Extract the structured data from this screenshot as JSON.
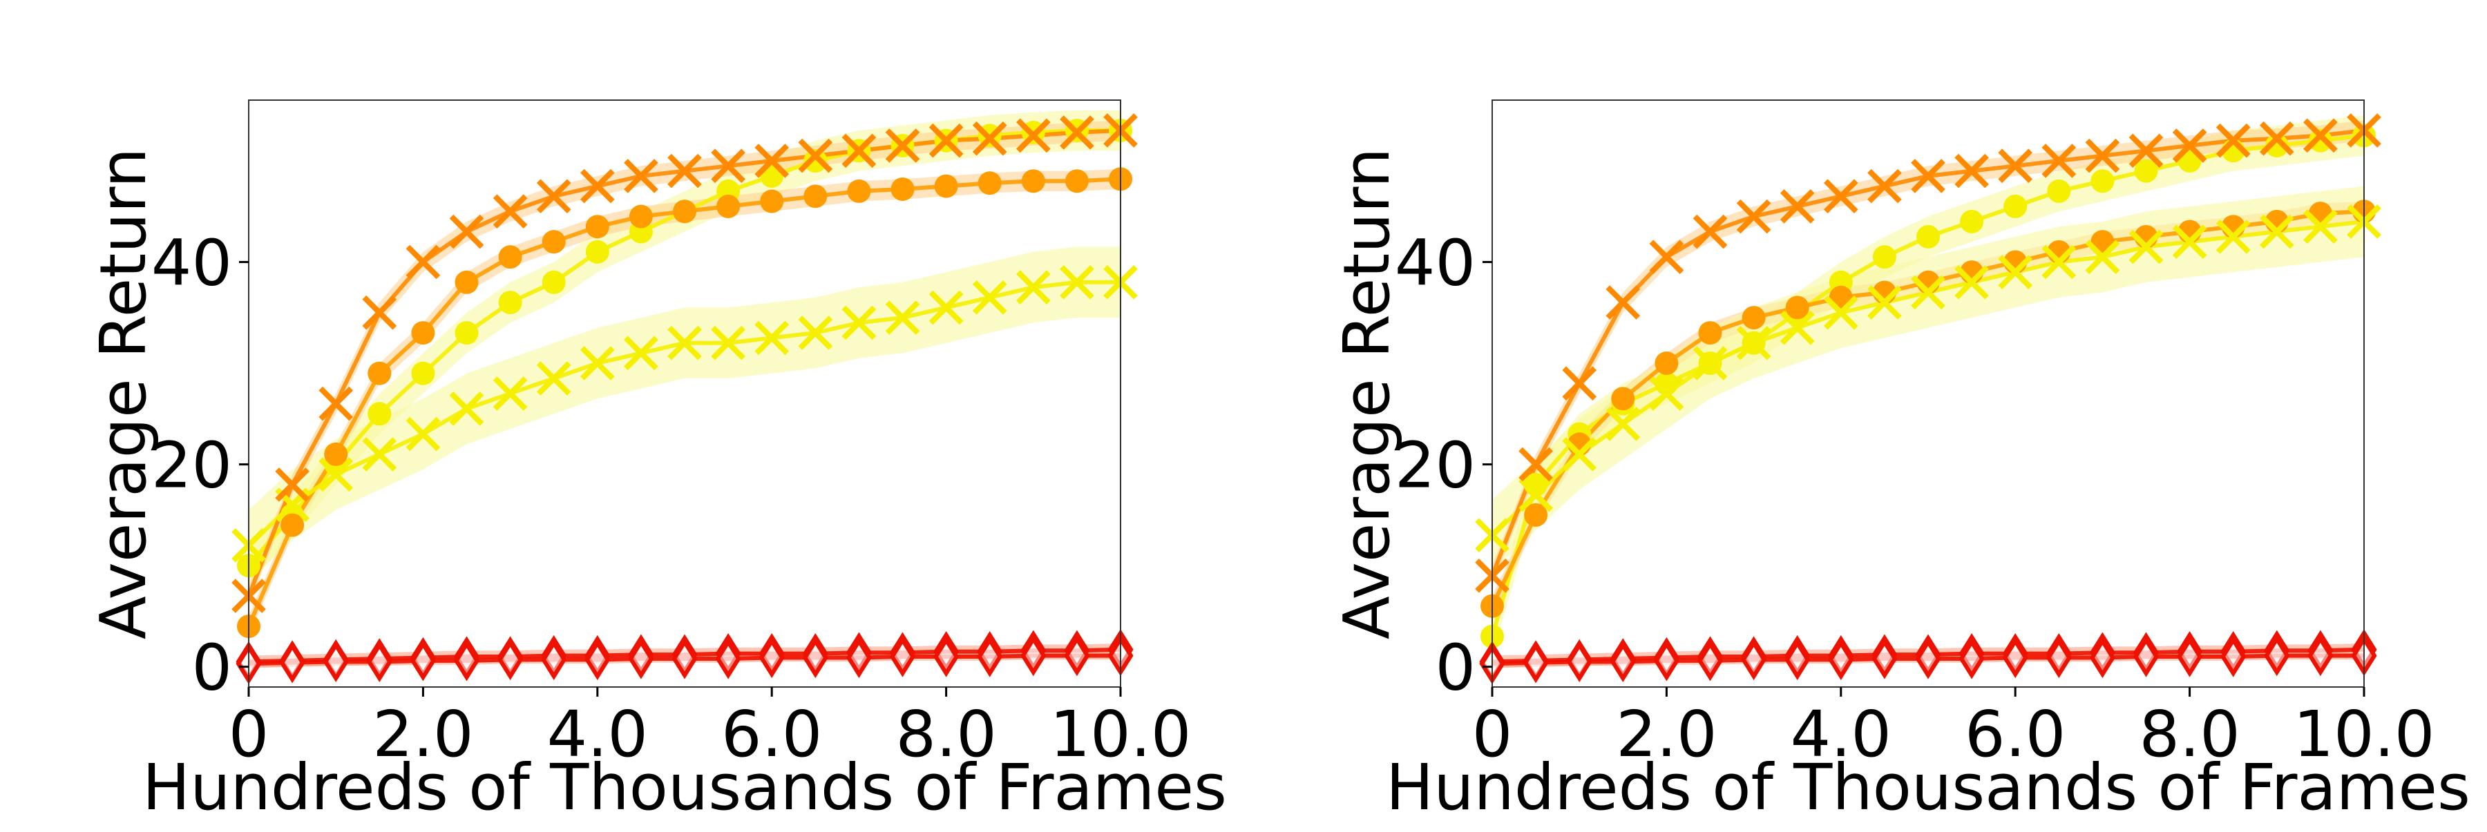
{
  "colors": {
    "yellow": "#f5ef00",
    "orange": "#ff9d00",
    "dark_orange": "#ff8a00",
    "red": "#ee1100",
    "band_yellow": "#f7f79a",
    "band_orange": "#ffcf8a",
    "band_red": "#ff9a7a"
  },
  "chart_data": [
    {
      "type": "line",
      "xlabel": "Hundreds of Thousands of Frames",
      "ylabel": "Average Return",
      "xlim": [
        0,
        10
      ],
      "ylim": [
        -2,
        56
      ],
      "xticks": [
        0,
        2,
        4,
        6,
        8,
        10
      ],
      "xtick_labels": [
        "0",
        "2.0",
        "4.0",
        "6.0",
        "8.0",
        "10.0"
      ],
      "yticks": [
        0,
        20,
        40
      ],
      "ytick_labels": [
        "0",
        "20",
        "40"
      ],
      "grid": false,
      "series": [
        {
          "marker": "circle",
          "color": "yellow",
          "band": 2.0,
          "x": [
            0,
            0.5,
            1,
            1.5,
            2,
            2.5,
            3,
            3.5,
            4,
            4.5,
            5,
            5.5,
            6,
            6.5,
            7,
            7.5,
            8,
            8.5,
            9,
            9.5,
            10
          ],
          "y": [
            10,
            15,
            20,
            25,
            29,
            33,
            36,
            38,
            41,
            43,
            45,
            47,
            48.5,
            50,
            51,
            51.5,
            52,
            52.5,
            52.8,
            53,
            53
          ]
        },
        {
          "marker": "circle",
          "color": "orange",
          "band": 1.0,
          "x": [
            0,
            0.5,
            1,
            1.5,
            2,
            2.5,
            3,
            3.5,
            4,
            4.5,
            5,
            5.5,
            6,
            6.5,
            7,
            7.5,
            8,
            8.5,
            9,
            9.5,
            10
          ],
          "y": [
            4,
            14,
            21,
            29,
            33,
            38,
            40.5,
            42,
            43.5,
            44.5,
            45,
            45.5,
            46,
            46.5,
            47,
            47.2,
            47.5,
            47.8,
            48,
            48,
            48.2
          ]
        },
        {
          "marker": "x",
          "color": "yellow",
          "band": 3.5,
          "x": [
            0,
            0.5,
            1,
            1.5,
            2,
            2.5,
            3,
            3.5,
            4,
            4.5,
            5,
            5.5,
            6,
            6.5,
            7,
            7.5,
            8,
            8.5,
            9,
            9.5,
            10
          ],
          "y": [
            12,
            16,
            19,
            21,
            23,
            25.5,
            27,
            28.5,
            30,
            31,
            32,
            32,
            32.5,
            33,
            34,
            34.5,
            35.5,
            36.5,
            37.5,
            38,
            38
          ]
        },
        {
          "marker": "x",
          "color": "dark_orange",
          "band": 1.0,
          "x": [
            0,
            0.5,
            1,
            1.5,
            2,
            2.5,
            3,
            3.5,
            4,
            4.5,
            5,
            5.5,
            6,
            6.5,
            7,
            7.5,
            8,
            8.5,
            9,
            9.5,
            10
          ],
          "y": [
            7,
            18,
            26,
            35,
            40,
            43,
            45,
            46.5,
            47.5,
            48.5,
            49,
            49.5,
            50,
            50.5,
            51,
            51.5,
            52,
            52.2,
            52.5,
            52.8,
            53
          ]
        },
        {
          "marker": "diamond",
          "color": "red",
          "band": 0.6,
          "x": [
            0,
            0.5,
            1,
            1.5,
            2,
            2.5,
            3,
            3.5,
            4,
            4.5,
            5,
            5.5,
            6,
            6.5,
            7,
            7.5,
            8,
            8.5,
            9,
            9.5,
            10
          ],
          "y": [
            0.5,
            0.6,
            0.7,
            0.8,
            0.9,
            1.0,
            1.0,
            1.1,
            1.1,
            1.2,
            1.2,
            1.3,
            1.3,
            1.3,
            1.4,
            1.4,
            1.5,
            1.5,
            1.6,
            1.6,
            1.7
          ]
        },
        {
          "marker": "diamond",
          "color": "red",
          "band": 0.4,
          "x": [
            0,
            0.5,
            1,
            1.5,
            2,
            2.5,
            3,
            3.5,
            4,
            4.5,
            5,
            5.5,
            6,
            6.5,
            7,
            7.5,
            8,
            8.5,
            9,
            9.5,
            10
          ],
          "y": [
            0.3,
            0.4,
            0.5,
            0.5,
            0.6,
            0.6,
            0.7,
            0.7,
            0.7,
            0.8,
            0.8,
            0.8,
            0.9,
            0.9,
            0.9,
            1.0,
            1.0,
            1.0,
            1.1,
            1.1,
            1.1
          ]
        }
      ]
    },
    {
      "type": "line",
      "xlabel": "Hundreds of Thousands of Frames",
      "ylabel": "Average Return",
      "xlim": [
        0,
        10
      ],
      "ylim": [
        -2,
        56
      ],
      "xticks": [
        0,
        2,
        4,
        6,
        8,
        10
      ],
      "xtick_labels": [
        "0",
        "2.0",
        "4.0",
        "6.0",
        "8.0",
        "10.0"
      ],
      "yticks": [
        0,
        20,
        40
      ],
      "ytick_labels": [
        "0",
        "20",
        "40"
      ],
      "grid": false,
      "series": [
        {
          "marker": "circle",
          "color": "yellow",
          "band": 2.0,
          "x": [
            0,
            0.5,
            1,
            1.5,
            2,
            2.5,
            3,
            3.5,
            4,
            4.5,
            5,
            5.5,
            6,
            6.5,
            7,
            7.5,
            8,
            8.5,
            9,
            9.5,
            10
          ],
          "y": [
            3,
            18,
            23,
            26,
            28,
            30,
            32,
            35,
            38,
            40.5,
            42.5,
            44,
            45.5,
            47,
            48,
            49,
            50,
            51,
            51.5,
            52,
            52.5
          ]
        },
        {
          "marker": "circle",
          "color": "orange",
          "band": 1.0,
          "x": [
            0,
            0.5,
            1,
            1.5,
            2,
            2.5,
            3,
            3.5,
            4,
            4.5,
            5,
            5.5,
            6,
            6.5,
            7,
            7.5,
            8,
            8.5,
            9,
            9.5,
            10
          ],
          "y": [
            6,
            15,
            22,
            26.5,
            30,
            33,
            34.5,
            35.5,
            36.5,
            37,
            38,
            39,
            40,
            41,
            42,
            42.5,
            43,
            43.5,
            44,
            44.8,
            45
          ]
        },
        {
          "marker": "x",
          "color": "yellow",
          "band": 3.5,
          "x": [
            0,
            0.5,
            1,
            1.5,
            2,
            2.5,
            3,
            3.5,
            4,
            4.5,
            5,
            5.5,
            6,
            6.5,
            7,
            7.5,
            8,
            8.5,
            9,
            9.5,
            10
          ],
          "y": [
            13,
            17,
            21,
            24,
            27,
            30,
            32,
            33.5,
            35,
            36,
            37,
            38,
            39,
            40,
            40.5,
            41.5,
            42,
            42.5,
            43,
            43.5,
            44
          ]
        },
        {
          "marker": "x",
          "color": "dark_orange",
          "band": 1.0,
          "x": [
            0,
            0.5,
            1,
            1.5,
            2,
            2.5,
            3,
            3.5,
            4,
            4.5,
            5,
            5.5,
            6,
            6.5,
            7,
            7.5,
            8,
            8.5,
            9,
            9.5,
            10
          ],
          "y": [
            9,
            20,
            28,
            36,
            40.5,
            43,
            44.5,
            45.5,
            46.5,
            47.5,
            48.5,
            49,
            49.5,
            50,
            50.5,
            51,
            51.5,
            52,
            52.2,
            52.5,
            53
          ]
        },
        {
          "marker": "diamond",
          "color": "red",
          "band": 0.6,
          "x": [
            0,
            0.5,
            1,
            1.5,
            2,
            2.5,
            3,
            3.5,
            4,
            4.5,
            5,
            5.5,
            6,
            6.5,
            7,
            7.5,
            8,
            8.5,
            9,
            9.5,
            10
          ],
          "y": [
            0.5,
            0.6,
            0.7,
            0.8,
            0.9,
            1.0,
            1.0,
            1.1,
            1.1,
            1.2,
            1.2,
            1.3,
            1.3,
            1.3,
            1.4,
            1.4,
            1.5,
            1.5,
            1.6,
            1.6,
            1.7
          ]
        },
        {
          "marker": "diamond",
          "color": "red",
          "band": 0.4,
          "x": [
            0,
            0.5,
            1,
            1.5,
            2,
            2.5,
            3,
            3.5,
            4,
            4.5,
            5,
            5.5,
            6,
            6.5,
            7,
            7.5,
            8,
            8.5,
            9,
            9.5,
            10
          ],
          "y": [
            0.3,
            0.4,
            0.5,
            0.5,
            0.6,
            0.6,
            0.7,
            0.7,
            0.7,
            0.8,
            0.8,
            0.8,
            0.9,
            0.9,
            0.9,
            1.0,
            1.0,
            1.0,
            1.1,
            1.1,
            1.1
          ]
        }
      ]
    }
  ]
}
